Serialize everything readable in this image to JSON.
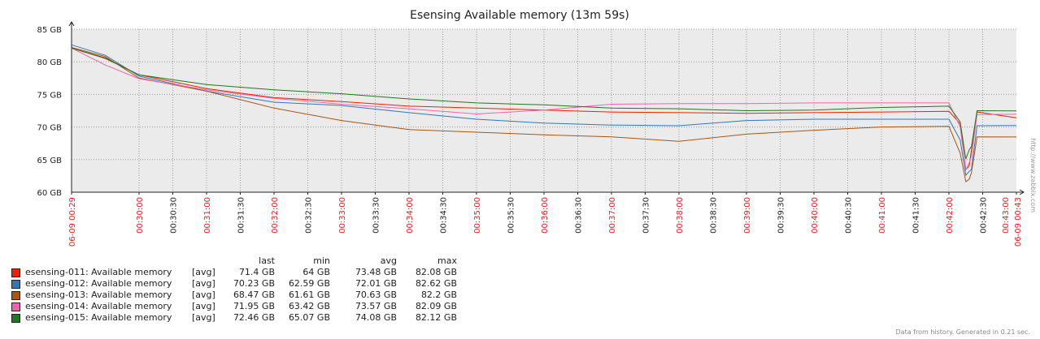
{
  "chart_data": {
    "type": "line",
    "title": "Esensing Available memory (13m 59s)",
    "y_unit": "GB",
    "ylim": [
      60,
      85
    ],
    "y_ticks": [
      {
        "value": 85,
        "label": "85 GB"
      },
      {
        "value": 80,
        "label": "80 GB"
      },
      {
        "value": 75,
        "label": "75 GB"
      },
      {
        "value": 70,
        "label": "70 GB"
      },
      {
        "value": 65,
        "label": "65 GB"
      },
      {
        "value": 60,
        "label": "60 GB"
      }
    ],
    "xlim": [
      "00:29:00",
      "00:43:00"
    ],
    "x_ticks": [
      {
        "t": "00:29:00",
        "label": "06-09 00:29",
        "major": true
      },
      {
        "t": "00:30:00",
        "label": "00:30:00",
        "major": true
      },
      {
        "t": "00:30:30",
        "label": "00:30:30",
        "major": false
      },
      {
        "t": "00:31:00",
        "label": "00:31:00",
        "major": true
      },
      {
        "t": "00:31:30",
        "label": "00:31:30",
        "major": false
      },
      {
        "t": "00:32:00",
        "label": "00:32:00",
        "major": true
      },
      {
        "t": "00:32:30",
        "label": "00:32:30",
        "major": false
      },
      {
        "t": "00:33:00",
        "label": "00:33:00",
        "major": true
      },
      {
        "t": "00:33:30",
        "label": "00:33:30",
        "major": false
      },
      {
        "t": "00:34:00",
        "label": "00:34:00",
        "major": true
      },
      {
        "t": "00:34:30",
        "label": "00:34:30",
        "major": false
      },
      {
        "t": "00:35:00",
        "label": "00:35:00",
        "major": true
      },
      {
        "t": "00:35:30",
        "label": "00:35:30",
        "major": false
      },
      {
        "t": "00:36:00",
        "label": "00:36:00",
        "major": true
      },
      {
        "t": "00:36:30",
        "label": "00:36:30",
        "major": false
      },
      {
        "t": "00:37:00",
        "label": "00:37:00",
        "major": true
      },
      {
        "t": "00:37:30",
        "label": "00:37:30",
        "major": false
      },
      {
        "t": "00:38:00",
        "label": "00:38:00",
        "major": true
      },
      {
        "t": "00:38:30",
        "label": "00:38:30",
        "major": false
      },
      {
        "t": "00:39:00",
        "label": "00:39:00",
        "major": true
      },
      {
        "t": "00:39:30",
        "label": "00:39:30",
        "major": false
      },
      {
        "t": "00:40:00",
        "label": "00:40:00",
        "major": true
      },
      {
        "t": "00:40:30",
        "label": "00:40:30",
        "major": false
      },
      {
        "t": "00:41:00",
        "label": "00:41:00",
        "major": true
      },
      {
        "t": "00:41:30",
        "label": "00:41:30",
        "major": false
      },
      {
        "t": "00:42:00",
        "label": "00:42:00",
        "major": true
      },
      {
        "t": "00:42:30",
        "label": "00:42:30",
        "major": false
      },
      {
        "t": "00:43:00",
        "label": "00:43:00",
        "major": true
      },
      {
        "t": "00:43:00",
        "label": "06-09 00:43",
        "major": true
      }
    ],
    "grid": true,
    "legend_position": "bottom-left",
    "colors": {
      "major_tick": "#dd2222",
      "background": "#ebebeb",
      "grid": "#999999"
    },
    "series": [
      {
        "name": "esensing-011: Available memory",
        "color": "#ee2200",
        "points": [
          [
            "00:29:00",
            82.1
          ],
          [
            "00:29:30",
            80.5
          ],
          [
            "00:30:00",
            78.0
          ],
          [
            "00:31:00",
            75.9
          ],
          [
            "00:32:00",
            74.5
          ],
          [
            "00:33:00",
            73.9
          ],
          [
            "00:34:00",
            73.2
          ],
          [
            "00:35:00",
            72.9
          ],
          [
            "00:36:00",
            72.6
          ],
          [
            "00:37:00",
            72.3
          ],
          [
            "00:38:00",
            72.2
          ],
          [
            "00:39:00",
            72.1
          ],
          [
            "00:40:00",
            72.2
          ],
          [
            "00:41:00",
            72.3
          ],
          [
            "00:42:00",
            72.4
          ],
          [
            "00:42:10",
            70.5
          ],
          [
            "00:42:15",
            63.5
          ],
          [
            "00:42:18",
            64.0
          ],
          [
            "00:42:20",
            66.5
          ],
          [
            "00:42:25",
            72.3
          ],
          [
            "00:43:00",
            71.4
          ]
        ]
      },
      {
        "name": "esensing-012: Available memory",
        "color": "#3377bb",
        "points": [
          [
            "00:29:00",
            82.6
          ],
          [
            "00:29:30",
            81.0
          ],
          [
            "00:30:00",
            77.8
          ],
          [
            "00:31:00",
            75.5
          ],
          [
            "00:32:00",
            73.8
          ],
          [
            "00:33:00",
            73.3
          ],
          [
            "00:34:00",
            72.2
          ],
          [
            "00:35:00",
            71.2
          ],
          [
            "00:36:00",
            70.6
          ],
          [
            "00:37:00",
            70.3
          ],
          [
            "00:38:00",
            70.2
          ],
          [
            "00:39:00",
            71.0
          ],
          [
            "00:40:00",
            71.2
          ],
          [
            "00:41:00",
            71.2
          ],
          [
            "00:42:00",
            71.2
          ],
          [
            "00:42:10",
            68.0
          ],
          [
            "00:42:15",
            62.6
          ],
          [
            "00:42:18",
            63.2
          ],
          [
            "00:42:20",
            63.5
          ],
          [
            "00:42:25",
            70.2
          ],
          [
            "00:43:00",
            70.23
          ]
        ]
      },
      {
        "name": "esensing-013: Available memory",
        "color": "#aa5511",
        "points": [
          [
            "00:29:00",
            82.2
          ],
          [
            "00:29:30",
            80.8
          ],
          [
            "00:30:00",
            77.5
          ],
          [
            "00:31:00",
            75.5
          ],
          [
            "00:32:00",
            72.9
          ],
          [
            "00:33:00",
            71.0
          ],
          [
            "00:34:00",
            69.6
          ],
          [
            "00:35:00",
            69.2
          ],
          [
            "00:36:00",
            68.8
          ],
          [
            "00:37:00",
            68.5
          ],
          [
            "00:38:00",
            67.8
          ],
          [
            "00:39:00",
            68.9
          ],
          [
            "00:40:00",
            69.5
          ],
          [
            "00:41:00",
            70.0
          ],
          [
            "00:42:00",
            70.1
          ],
          [
            "00:42:10",
            66.0
          ],
          [
            "00:42:15",
            61.6
          ],
          [
            "00:42:18",
            62.0
          ],
          [
            "00:42:20",
            63.0
          ],
          [
            "00:42:25",
            68.5
          ],
          [
            "00:43:00",
            68.47
          ]
        ]
      },
      {
        "name": "esensing-014: Available memory",
        "color": "#ee66aa",
        "points": [
          [
            "00:29:00",
            82.1
          ],
          [
            "00:29:30",
            79.5
          ],
          [
            "00:30:00",
            77.4
          ],
          [
            "00:31:00",
            75.7
          ],
          [
            "00:32:00",
            74.4
          ],
          [
            "00:33:00",
            73.5
          ],
          [
            "00:34:00",
            72.8
          ],
          [
            "00:35:00",
            72.0
          ],
          [
            "00:36:00",
            72.6
          ],
          [
            "00:37:00",
            73.5
          ],
          [
            "00:38:00",
            73.6
          ],
          [
            "00:39:00",
            73.6
          ],
          [
            "00:40:00",
            73.7
          ],
          [
            "00:41:00",
            73.7
          ],
          [
            "00:42:00",
            73.7
          ],
          [
            "00:42:10",
            70.0
          ],
          [
            "00:42:15",
            63.4
          ],
          [
            "00:42:18",
            64.5
          ],
          [
            "00:42:20",
            65.5
          ],
          [
            "00:42:25",
            71.9
          ],
          [
            "00:43:00",
            71.95
          ]
        ]
      },
      {
        "name": "esensing-015: Available memory",
        "color": "#227722",
        "points": [
          [
            "00:29:00",
            82.1
          ],
          [
            "00:29:30",
            80.6
          ],
          [
            "00:30:00",
            78.0
          ],
          [
            "00:31:00",
            76.5
          ],
          [
            "00:32:00",
            75.7
          ],
          [
            "00:33:00",
            75.1
          ],
          [
            "00:34:00",
            74.3
          ],
          [
            "00:35:00",
            73.7
          ],
          [
            "00:36:00",
            73.4
          ],
          [
            "00:37:00",
            72.9
          ],
          [
            "00:38:00",
            72.8
          ],
          [
            "00:39:00",
            72.5
          ],
          [
            "00:40:00",
            72.6
          ],
          [
            "00:41:00",
            73.0
          ],
          [
            "00:42:00",
            73.2
          ],
          [
            "00:42:10",
            70.8
          ],
          [
            "00:42:15",
            65.1
          ],
          [
            "00:42:18",
            66.5
          ],
          [
            "00:42:20",
            67.0
          ],
          [
            "00:42:25",
            72.5
          ],
          [
            "00:43:00",
            72.46
          ]
        ]
      }
    ]
  },
  "legend": {
    "headers": {
      "last": "last",
      "min": "min",
      "avg": "avg",
      "max": "max"
    },
    "rows": [
      {
        "name": "esensing-011: Available memory",
        "func": "[avg]",
        "color": "#ee2200",
        "last": "71.4 GB",
        "min": "64 GB",
        "avg": "73.48 GB",
        "max": "82.08 GB"
      },
      {
        "name": "esensing-012: Available memory",
        "func": "[avg]",
        "color": "#3377bb",
        "last": "70.23 GB",
        "min": "62.59 GB",
        "avg": "72.01 GB",
        "max": "82.62 GB"
      },
      {
        "name": "esensing-013: Available memory",
        "func": "[avg]",
        "color": "#aa5511",
        "last": "68.47 GB",
        "min": "61.61 GB",
        "avg": "70.63 GB",
        "max": "82.2 GB"
      },
      {
        "name": "esensing-014: Available memory",
        "func": "[avg]",
        "color": "#ee66aa",
        "last": "71.95 GB",
        "min": "63.42 GB",
        "avg": "73.57 GB",
        "max": "82.09 GB"
      },
      {
        "name": "esensing-015: Available memory",
        "func": "[avg]",
        "color": "#227722",
        "last": "72.46 GB",
        "min": "65.07 GB",
        "avg": "74.08 GB",
        "max": "82.12 GB"
      }
    ]
  },
  "footer": {
    "note": "Data from history. Generated in 0.21 sec.",
    "watermark": "http://www.zabbix.com"
  }
}
